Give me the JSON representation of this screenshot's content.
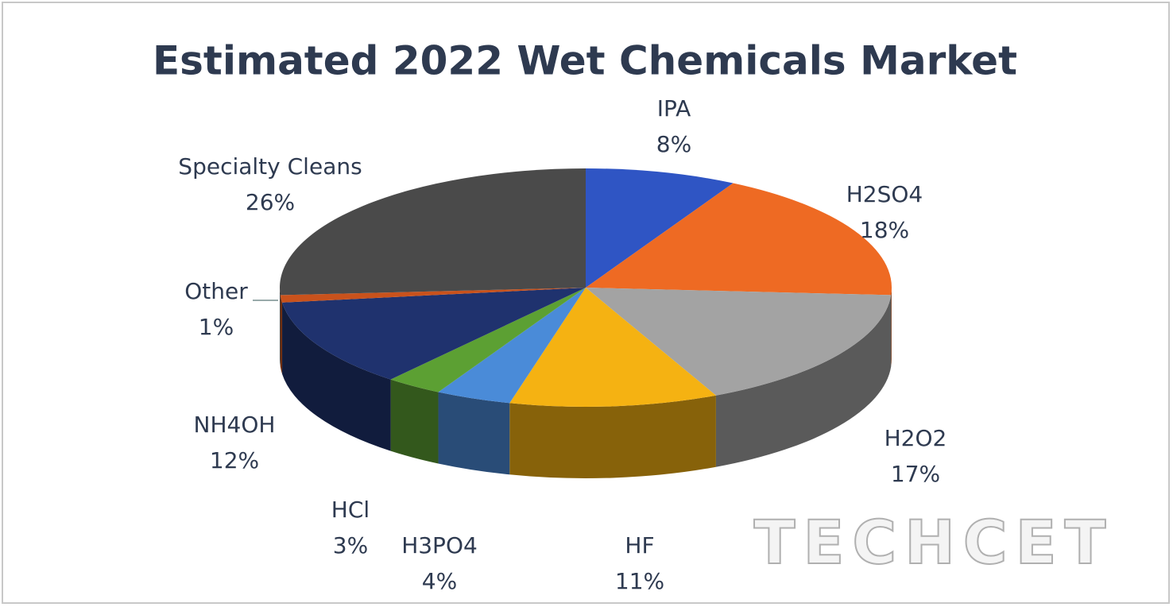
{
  "chart_data": {
    "type": "pie3d",
    "title": "Estimated 2022 Wet Chemicals Market",
    "categories": [
      "IPA",
      "H2SO4",
      "H2O2",
      "HF",
      "H3PO4",
      "HCl",
      "NH4OH",
      "Other",
      "Specialty Cleans"
    ],
    "values": [
      8,
      18,
      17,
      11,
      4,
      3,
      12,
      1,
      26
    ],
    "value_labels": [
      "8%",
      "18%",
      "17%",
      "11%",
      "4%",
      "3%",
      "12%",
      "1%",
      "26%"
    ],
    "colors": [
      "#2f55c4",
      "#ee6a23",
      "#a3a3a3",
      "#f5b212",
      "#4a8bd8",
      "#5ca033",
      "#1f326e",
      "#c9521c",
      "#4a4a4a"
    ],
    "watermark": "TECHCET"
  }
}
